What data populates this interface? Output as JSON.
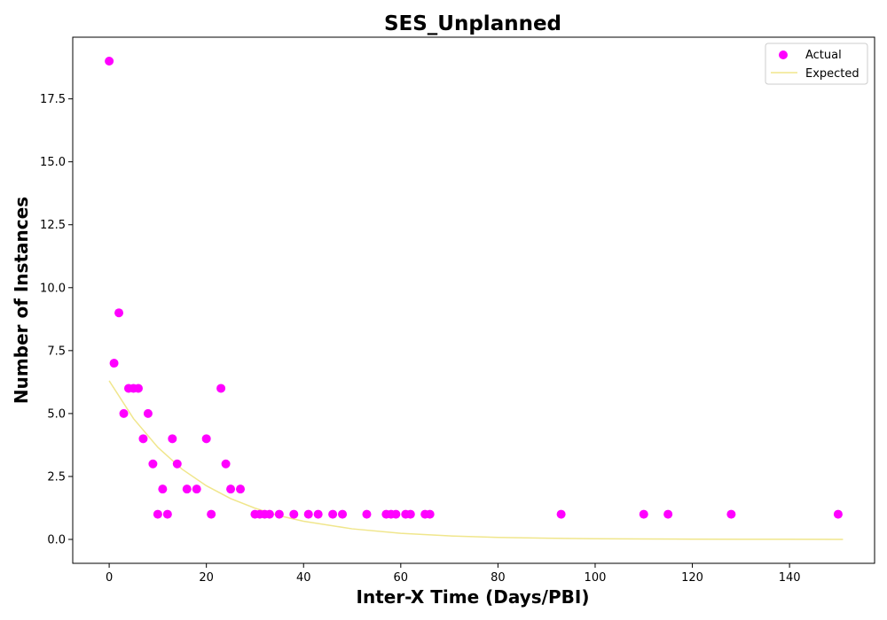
{
  "chart_data": {
    "type": "scatter",
    "title": "SES_Unplanned",
    "xlabel": "Inter-X Time (Days/PBI)",
    "ylabel": "Number of Instances",
    "xlim": [
      -7.5,
      157.5
    ],
    "ylim": [
      -0.95,
      19.95
    ],
    "xticks": [
      0,
      20,
      40,
      60,
      80,
      100,
      120,
      140
    ],
    "yticks": [
      0.0,
      2.5,
      5.0,
      7.5,
      10.0,
      12.5,
      15.0,
      17.5
    ],
    "ytick_labels": [
      "0.0",
      "2.5",
      "5.0",
      "7.5",
      "10.0",
      "12.5",
      "15.0",
      "17.5"
    ],
    "grid": false,
    "legend_position": "top-right",
    "series": [
      {
        "name": "Actual",
        "kind": "scatter",
        "color": "#ff00ff",
        "x": [
          0,
          1,
          2,
          3,
          4,
          5,
          6,
          7,
          8,
          9,
          10,
          11,
          12,
          13,
          14,
          16,
          18,
          20,
          21,
          23,
          24,
          25,
          27,
          30,
          31,
          32,
          33,
          35,
          38,
          41,
          43,
          46,
          48,
          53,
          57,
          58,
          59,
          61,
          62,
          65,
          66,
          93,
          110,
          115,
          128,
          150
        ],
        "y": [
          19,
          7,
          9,
          5,
          6,
          6,
          6,
          4,
          5,
          3,
          1,
          2,
          1,
          4,
          3,
          2,
          2,
          4,
          1,
          6,
          3,
          2,
          2,
          1,
          1,
          1,
          1,
          1,
          1,
          1,
          1,
          1,
          1,
          1,
          1,
          1,
          1,
          1,
          1,
          1,
          1,
          1,
          1,
          1,
          1,
          1
        ]
      },
      {
        "name": "Expected",
        "kind": "line",
        "color": "#f0e68c",
        "x": [
          0,
          5,
          10,
          15,
          20,
          25,
          30,
          35,
          40,
          50,
          60,
          70,
          80,
          90,
          100,
          110,
          120,
          130,
          140,
          151
        ],
        "y": [
          6.3,
          4.8,
          3.66,
          2.79,
          2.13,
          1.62,
          1.24,
          0.94,
          0.72,
          0.42,
          0.24,
          0.14,
          0.08,
          0.047,
          0.027,
          0.016,
          0.009,
          0.005,
          0.003,
          0.002
        ]
      }
    ]
  }
}
